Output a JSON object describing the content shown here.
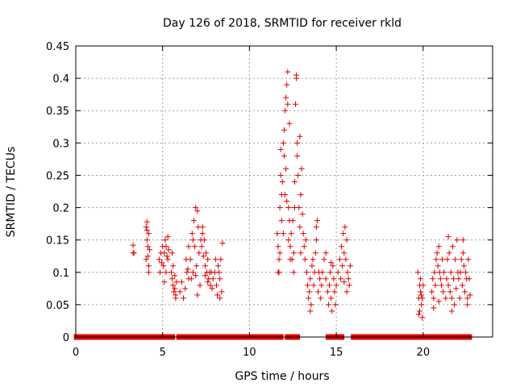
{
  "chart_data": {
    "type": "scatter",
    "title": "Day 126 of 2018, SRMTID for receiver rkld",
    "xlabel": "GPS time / hours",
    "ylabel": "SRMTID / TECUs",
    "xlim": [
      0,
      24
    ],
    "ylim": [
      0,
      0.45
    ],
    "xticks": [
      0,
      5,
      10,
      15,
      20
    ],
    "yticks": [
      0,
      0.05,
      0.1,
      0.15,
      0.2,
      0.25,
      0.3,
      0.35,
      0.4,
      0.45
    ],
    "xtick_labels": [
      "0",
      "5",
      "10",
      "15",
      "20"
    ],
    "ytick_labels": [
      "0",
      "0.05",
      "0.1",
      "0.15",
      "0.2",
      "0.25",
      "0.3",
      "0.35",
      "0.4",
      "0.45"
    ],
    "grid": true,
    "marker": "+",
    "color": "#e00000",
    "series": [
      {
        "name": "SRMTID",
        "points": [
          [
            3.3,
            0.13
          ],
          [
            3.3,
            0.142
          ],
          [
            3.35,
            0.13
          ],
          [
            4.05,
            0.17
          ],
          [
            4.1,
            0.165
          ],
          [
            4.1,
            0.15
          ],
          [
            4.15,
            0.14
          ],
          [
            4.15,
            0.125
          ],
          [
            4.2,
            0.11
          ],
          [
            4.2,
            0.1
          ],
          [
            4.1,
            0.178
          ],
          [
            4.2,
            0.16
          ],
          [
            4.25,
            0.135
          ],
          [
            4.05,
            0.12
          ],
          [
            4.8,
            0.12
          ],
          [
            4.85,
            0.1
          ],
          [
            4.9,
            0.13
          ],
          [
            4.95,
            0.115
          ],
          [
            5.0,
            0.14
          ],
          [
            5.05,
            0.11
          ],
          [
            5.1,
            0.13
          ],
          [
            5.15,
            0.15
          ],
          [
            5.2,
            0.14
          ],
          [
            5.25,
            0.125
          ],
          [
            5.3,
            0.155
          ],
          [
            5.35,
            0.135
          ],
          [
            5.2,
            0.1
          ],
          [
            5.1,
            0.085
          ],
          [
            5.3,
            0.12
          ],
          [
            5.5,
            0.1
          ],
          [
            5.55,
            0.09
          ],
          [
            5.6,
            0.08
          ],
          [
            5.65,
            0.07
          ],
          [
            5.7,
            0.095
          ],
          [
            5.75,
            0.06
          ],
          [
            5.8,
            0.085
          ],
          [
            5.6,
            0.11
          ],
          [
            5.7,
            0.075
          ],
          [
            5.75,
            0.065
          ],
          [
            5.55,
            0.13
          ],
          [
            6.0,
            0.07
          ],
          [
            6.1,
            0.085
          ],
          [
            6.2,
            0.06
          ],
          [
            6.3,
            0.075
          ],
          [
            6.4,
            0.1
          ],
          [
            6.5,
            0.09
          ],
          [
            6.35,
            0.12
          ],
          [
            6.45,
            0.105
          ],
          [
            6.5,
            0.14
          ],
          [
            6.6,
            0.12
          ],
          [
            6.7,
            0.16
          ],
          [
            6.75,
            0.1
          ],
          [
            6.8,
            0.18
          ],
          [
            6.85,
            0.14
          ],
          [
            6.9,
            0.2
          ],
          [
            6.95,
            0.11
          ],
          [
            7.0,
            0.195
          ],
          [
            7.05,
            0.17
          ],
          [
            7.1,
            0.13
          ],
          [
            7.15,
            0.08
          ],
          [
            6.65,
            0.09
          ],
          [
            6.9,
            0.095
          ],
          [
            7.0,
            0.065
          ],
          [
            6.75,
            0.15
          ],
          [
            7.2,
            0.15
          ],
          [
            7.25,
            0.14
          ],
          [
            7.3,
            0.16
          ],
          [
            7.35,
            0.125
          ],
          [
            7.4,
            0.15
          ],
          [
            7.45,
            0.11
          ],
          [
            7.5,
            0.13
          ],
          [
            7.55,
            0.1
          ],
          [
            7.6,
            0.12
          ],
          [
            7.65,
            0.09
          ],
          [
            7.7,
            0.1
          ],
          [
            7.75,
            0.08
          ],
          [
            7.8,
            0.1
          ],
          [
            7.85,
            0.075
          ],
          [
            7.3,
            0.17
          ],
          [
            7.45,
            0.095
          ],
          [
            7.6,
            0.085
          ],
          [
            7.9,
            0.09
          ],
          [
            8.0,
            0.1
          ],
          [
            8.05,
            0.12
          ],
          [
            8.1,
            0.08
          ],
          [
            8.2,
            0.11
          ],
          [
            8.25,
            0.1
          ],
          [
            8.3,
            0.09
          ],
          [
            8.35,
            0.12
          ],
          [
            8.4,
            0.07
          ],
          [
            8.45,
            0.145
          ],
          [
            8.3,
            0.06
          ],
          [
            8.15,
            0.065
          ],
          [
            11.6,
            0.16
          ],
          [
            11.65,
            0.14
          ],
          [
            11.7,
            0.12
          ],
          [
            11.7,
            0.1
          ],
          [
            11.75,
            0.13
          ],
          [
            11.75,
            0.2
          ],
          [
            11.8,
            0.25
          ],
          [
            11.8,
            0.29
          ],
          [
            11.85,
            0.22
          ],
          [
            11.85,
            0.18
          ],
          [
            11.9,
            0.24
          ],
          [
            11.95,
            0.3
          ],
          [
            11.95,
            0.16
          ],
          [
            12.0,
            0.32
          ],
          [
            12.0,
            0.28
          ],
          [
            12.05,
            0.35
          ],
          [
            12.05,
            0.22
          ],
          [
            12.1,
            0.37
          ],
          [
            12.1,
            0.26
          ],
          [
            12.15,
            0.39
          ],
          [
            12.15,
            0.21
          ],
          [
            12.2,
            0.41
          ],
          [
            12.2,
            0.36
          ],
          [
            12.25,
            0.2
          ],
          [
            12.25,
            0.15
          ],
          [
            12.3,
            0.33
          ],
          [
            12.3,
            0.18
          ],
          [
            12.35,
            0.14
          ],
          [
            12.35,
            0.12
          ],
          [
            11.65,
            0.1
          ],
          [
            12.4,
            0.16
          ],
          [
            12.45,
            0.12
          ],
          [
            12.5,
            0.18
          ],
          [
            12.55,
            0.13
          ],
          [
            12.6,
            0.2
          ],
          [
            12.6,
            0.24
          ],
          [
            12.65,
            0.36
          ],
          [
            12.7,
            0.4
          ],
          [
            12.7,
            0.405
          ],
          [
            12.75,
            0.3
          ],
          [
            12.75,
            0.28
          ],
          [
            12.8,
            0.25
          ],
          [
            12.85,
            0.2
          ],
          [
            12.9,
            0.31
          ],
          [
            12.9,
            0.17
          ],
          [
            12.95,
            0.22
          ],
          [
            13.0,
            0.26
          ],
          [
            13.05,
            0.19
          ],
          [
            13.1,
            0.16
          ],
          [
            13.15,
            0.14
          ],
          [
            13.2,
            0.12
          ],
          [
            13.25,
            0.15
          ],
          [
            12.55,
            0.1
          ],
          [
            12.95,
            0.13
          ],
          [
            13.3,
            0.1
          ],
          [
            13.35,
            0.08
          ],
          [
            13.4,
            0.06
          ],
          [
            13.45,
            0.07
          ],
          [
            13.5,
            0.09
          ],
          [
            13.55,
            0.05
          ],
          [
            13.6,
            0.11
          ],
          [
            13.65,
            0.12
          ],
          [
            13.7,
            0.08
          ],
          [
            13.75,
            0.1
          ],
          [
            13.8,
            0.13
          ],
          [
            13.85,
            0.17
          ],
          [
            13.9,
            0.18
          ],
          [
            13.95,
            0.07
          ],
          [
            14.0,
            0.1
          ],
          [
            14.05,
            0.09
          ],
          [
            14.1,
            0.06
          ],
          [
            14.15,
            0.08
          ],
          [
            13.5,
            0.04
          ],
          [
            13.85,
            0.15
          ],
          [
            14.2,
            0.1
          ],
          [
            14.3,
            0.12
          ],
          [
            14.4,
            0.09
          ],
          [
            14.5,
            0.07
          ],
          [
            14.55,
            0.05
          ],
          [
            14.6,
            0.08
          ],
          [
            14.65,
            0.1
          ],
          [
            14.7,
            0.06
          ],
          [
            14.75,
            0.04
          ],
          [
            14.8,
            0.11
          ],
          [
            14.85,
            0.09
          ],
          [
            14.9,
            0.07
          ],
          [
            14.95,
            0.05
          ],
          [
            15.0,
            0.08
          ],
          [
            14.4,
            0.13
          ],
          [
            14.7,
            0.115
          ],
          [
            15.1,
            0.1
          ],
          [
            15.2,
            0.12
          ],
          [
            15.25,
            0.09
          ],
          [
            15.3,
            0.14
          ],
          [
            15.35,
            0.11
          ],
          [
            15.4,
            0.16
          ],
          [
            15.45,
            0.13
          ],
          [
            15.5,
            0.17
          ],
          [
            15.55,
            0.12
          ],
          [
            15.6,
            0.15
          ],
          [
            15.65,
            0.1
          ],
          [
            15.7,
            0.09
          ],
          [
            15.75,
            0.08
          ],
          [
            15.8,
            0.11
          ],
          [
            15.45,
            0.085
          ],
          [
            15.6,
            0.07
          ],
          [
            19.7,
            0.1
          ],
          [
            19.75,
            0.06
          ],
          [
            19.8,
            0.08
          ],
          [
            19.8,
            0.04
          ],
          [
            19.85,
            0.07
          ],
          [
            19.9,
            0.05
          ],
          [
            19.95,
            0.03
          ],
          [
            20.0,
            0.08
          ],
          [
            19.85,
            0.09
          ],
          [
            19.9,
            0.065
          ],
          [
            19.75,
            0.035
          ],
          [
            19.95,
            0.06
          ],
          [
            20.5,
            0.07
          ],
          [
            20.55,
            0.09
          ],
          [
            20.6,
            0.06
          ],
          [
            20.65,
            0.1
          ],
          [
            20.7,
            0.08
          ],
          [
            20.75,
            0.12
          ],
          [
            20.8,
            0.13
          ],
          [
            20.85,
            0.11
          ],
          [
            20.9,
            0.14
          ],
          [
            20.95,
            0.1
          ],
          [
            21.0,
            0.09
          ],
          [
            21.05,
            0.08
          ],
          [
            21.1,
            0.12
          ],
          [
            21.15,
            0.07
          ],
          [
            21.2,
            0.1
          ],
          [
            20.6,
            0.045
          ],
          [
            20.9,
            0.055
          ],
          [
            21.3,
            0.06
          ],
          [
            21.35,
            0.09
          ],
          [
            21.4,
            0.12
          ],
          [
            21.45,
            0.08
          ],
          [
            21.5,
            0.13
          ],
          [
            21.55,
            0.07
          ],
          [
            21.6,
            0.1
          ],
          [
            21.65,
            0.06
          ],
          [
            21.7,
            0.14
          ],
          [
            21.75,
            0.09
          ],
          [
            21.8,
            0.05
          ],
          [
            21.85,
            0.12
          ],
          [
            21.9,
            0.075
          ],
          [
            21.95,
            0.15
          ],
          [
            22.0,
            0.1
          ],
          [
            21.45,
            0.155
          ],
          [
            21.65,
            0.04
          ],
          [
            22.05,
            0.09
          ],
          [
            22.1,
            0.06
          ],
          [
            22.15,
            0.1
          ],
          [
            22.2,
            0.12
          ],
          [
            22.25,
            0.08
          ],
          [
            22.3,
            0.13
          ],
          [
            22.35,
            0.11
          ],
          [
            22.4,
            0.07
          ],
          [
            22.45,
            0.1
          ],
          [
            22.5,
            0.09
          ],
          [
            22.55,
            0.06
          ],
          [
            22.6,
            0.12
          ],
          [
            22.65,
            0.09
          ],
          [
            22.7,
            0.065
          ],
          [
            22.3,
            0.15
          ],
          [
            22.55,
            0.05
          ]
        ]
      },
      {
        "name": "zero-baseline",
        "x_ranges": [
          [
            0.05,
            4.2
          ],
          [
            4.35,
            5.15
          ],
          [
            5.3,
            5.55
          ],
          [
            5.95,
            6.6
          ],
          [
            6.7,
            7.1
          ],
          [
            7.2,
            7.6
          ],
          [
            7.75,
            8.2
          ],
          [
            8.35,
            8.55
          ],
          [
            8.75,
            11.8
          ],
          [
            12.2,
            12.35
          ],
          [
            12.6,
            12.75
          ],
          [
            14.55,
            14.95
          ],
          [
            15.1,
            15.3
          ],
          [
            16.0,
            19.65
          ],
          [
            19.75,
            20.05
          ],
          [
            20.25,
            21.05
          ],
          [
            21.25,
            21.55
          ],
          [
            21.75,
            22.65
          ]
        ],
        "y": 0
      }
    ]
  }
}
